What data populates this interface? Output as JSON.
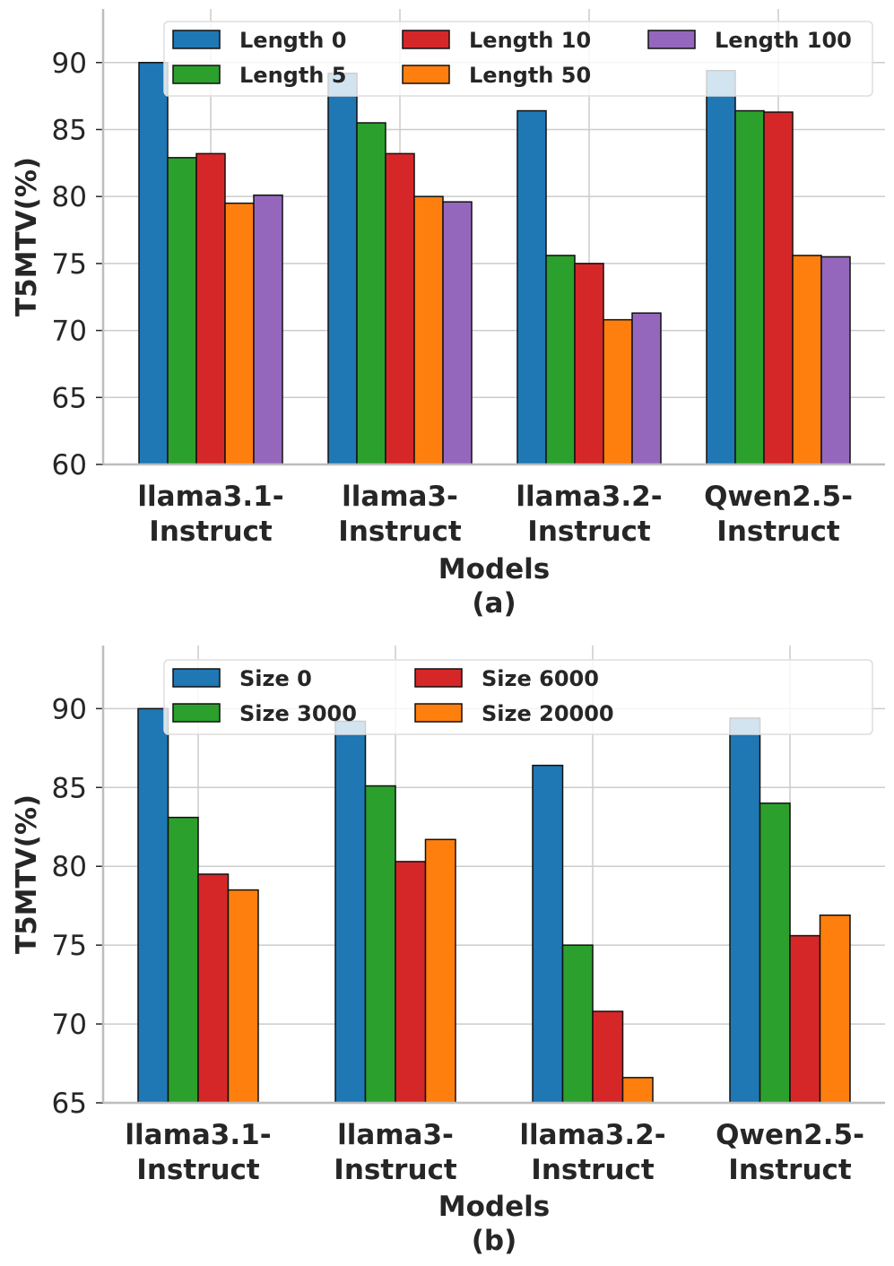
{
  "chart_data": [
    {
      "type": "bar",
      "panel_label": "(a)",
      "categories": [
        [
          "llama3.1-",
          "Instruct"
        ],
        [
          "llama3-",
          "Instruct"
        ],
        [
          "llama3.2-",
          "Instruct"
        ],
        [
          "Qwen2.5-",
          "Instruct"
        ]
      ],
      "xlabel": "Models",
      "ylabel": "T5MTV(%)",
      "ylim": [
        60,
        94
      ],
      "yticks": [
        60,
        65,
        70,
        75,
        80,
        85,
        90
      ],
      "grid": true,
      "legend_position": "top-right",
      "legend_columns": 3,
      "series": [
        {
          "name": "Length 0",
          "color": "#1f77b4",
          "values": [
            90.0,
            89.2,
            86.4,
            89.4
          ]
        },
        {
          "name": "Length 5",
          "color": "#2ca02c",
          "values": [
            82.9,
            85.5,
            75.6,
            86.4
          ]
        },
        {
          "name": "Length 10",
          "color": "#d62728",
          "values": [
            83.2,
            83.2,
            75.0,
            86.3
          ]
        },
        {
          "name": "Length 50",
          "color": "#ff7f0e",
          "values": [
            79.5,
            80.0,
            70.8,
            75.6
          ]
        },
        {
          "name": "Length 100",
          "color": "#9467bd",
          "values": [
            80.1,
            79.6,
            71.3,
            75.5
          ]
        }
      ]
    },
    {
      "type": "bar",
      "panel_label": "(b)",
      "categories": [
        [
          "llama3.1-",
          "Instruct"
        ],
        [
          "llama3-",
          "Instruct"
        ],
        [
          "llama3.2-",
          "Instruct"
        ],
        [
          "Qwen2.5-",
          "Instruct"
        ]
      ],
      "xlabel": "Models",
      "ylabel": "T5MTV(%)",
      "ylim": [
        65,
        94
      ],
      "yticks": [
        65,
        70,
        75,
        80,
        85,
        90
      ],
      "grid": true,
      "legend_position": "top-right",
      "legend_columns": 3,
      "series": [
        {
          "name": "Size 0",
          "color": "#1f77b4",
          "values": [
            90.0,
            89.2,
            86.4,
            89.4
          ]
        },
        {
          "name": "Size 3000",
          "color": "#2ca02c",
          "values": [
            83.1,
            85.1,
            75.0,
            84.0
          ]
        },
        {
          "name": "Size 6000",
          "color": "#d62728",
          "values": [
            79.5,
            80.3,
            70.8,
            75.6
          ]
        },
        {
          "name": "Size 20000",
          "color": "#ff7f0e",
          "values": [
            78.5,
            81.7,
            66.6,
            76.9
          ]
        }
      ]
    }
  ]
}
